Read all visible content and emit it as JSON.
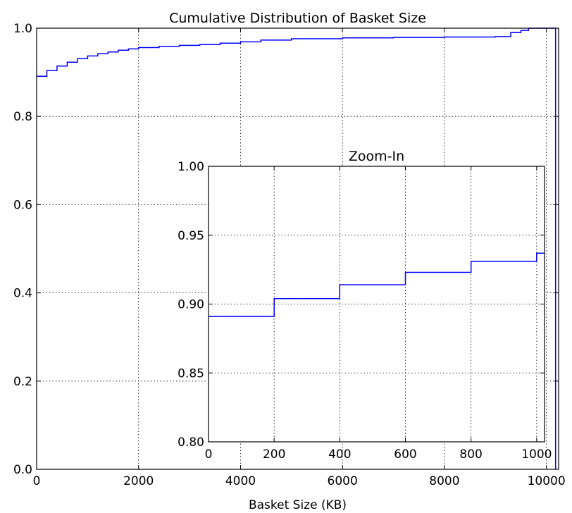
{
  "chart_data": [
    {
      "type": "line",
      "step": true,
      "title": "Cumulative Distribution of Basket Size",
      "xlabel": "Basket Size (KB)",
      "ylabel": "",
      "xlim": [
        0,
        10240
      ],
      "ylim": [
        0.0,
        1.0
      ],
      "xticks": [
        0,
        2000,
        4000,
        6000,
        8000,
        10000
      ],
      "xtick_labels": [
        "0",
        "2000",
        "4000",
        "6000",
        "8000",
        "10000"
      ],
      "yticks": [
        0.0,
        0.2,
        0.4,
        0.6,
        0.8,
        1.0
      ],
      "ytick_labels": [
        "0.0",
        "0.2",
        "0.4",
        "0.6",
        "0.8",
        "1.0"
      ],
      "grid": true,
      "series": [
        {
          "color": "#0000ff",
          "x": [
            0,
            200,
            400,
            600,
            800,
            1000,
            1200,
            1400,
            1600,
            1800,
            2000,
            2400,
            2800,
            3200,
            3600,
            4000,
            4400,
            5000,
            6000,
            7000,
            8000,
            9000,
            9300,
            9500,
            9650,
            10000,
            10180,
            10180
          ],
          "y": [
            0.891,
            0.904,
            0.914,
            0.923,
            0.931,
            0.937,
            0.942,
            0.946,
            0.95,
            0.953,
            0.956,
            0.959,
            0.961,
            0.963,
            0.966,
            0.969,
            0.973,
            0.976,
            0.978,
            0.979,
            0.98,
            0.981,
            0.99,
            0.995,
            1.0,
            1.0,
            1.0,
            0.0
          ]
        }
      ]
    },
    {
      "type": "line",
      "step": true,
      "title": "Zoom-In",
      "xlabel": "",
      "ylabel": "",
      "xlim": [
        0,
        1024
      ],
      "ylim": [
        0.8,
        1.0
      ],
      "xticks": [
        0,
        200,
        400,
        600,
        800,
        1000
      ],
      "xtick_labels": [
        "0",
        "200",
        "400",
        "600",
        "800",
        "1000"
      ],
      "yticks": [
        0.8,
        0.85,
        0.9,
        0.95,
        1.0
      ],
      "ytick_labels": [
        "0.80",
        "0.85",
        "0.90",
        "0.95",
        "1.00"
      ],
      "grid": true,
      "series": [
        {
          "color": "#0000ff",
          "x": [
            0,
            200,
            400,
            600,
            800,
            1000,
            1024
          ],
          "y": [
            0.891,
            0.904,
            0.914,
            0.923,
            0.931,
            0.937,
            0.937
          ]
        }
      ]
    }
  ]
}
